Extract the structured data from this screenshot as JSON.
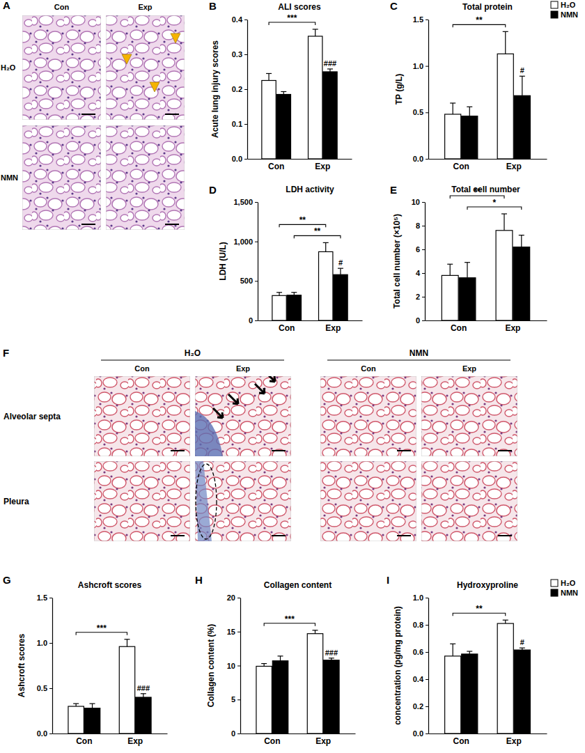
{
  "chart_data": [
    {
      "panel": "B",
      "type": "bar",
      "title": "ALI scores",
      "ylabel": "Acute lung injury scores",
      "categories": [
        "Con",
        "Exp"
      ],
      "series": [
        {
          "color": "#ffffff",
          "values": [
            0.225,
            0.352
          ],
          "errors": [
            0.02,
            0.02
          ]
        },
        {
          "color": "#000000",
          "values": [
            0.185,
            0.25
          ],
          "errors": [
            0.008,
            0.008
          ]
        }
      ],
      "ylim": [
        0,
        0.4
      ],
      "yticks": [
        {
          "value": 0,
          "label": "0.0"
        },
        0.1,
        0.2,
        0.3,
        0.4
      ],
      "annotations": [
        {
          "text": "***",
          "from": [
            0,
            0
          ],
          "to": [
            0,
            1
          ]
        },
        {
          "text": "###",
          "at": [
            1,
            1
          ]
        }
      ]
    },
    {
      "panel": "C",
      "type": "bar",
      "title": "Total protein",
      "ylabel": "TP (g/L)",
      "categories": [
        "Con",
        "Exp"
      ],
      "series": [
        {
          "name": "H₂O",
          "color": "#ffffff",
          "values": [
            0.48,
            1.13
          ],
          "errors": [
            0.12,
            0.24
          ]
        },
        {
          "name": "NMN",
          "color": "#000000",
          "values": [
            0.46,
            0.68
          ],
          "errors": [
            0.1,
            0.21
          ]
        }
      ],
      "legend": "top-right",
      "ylim": [
        0,
        1.5
      ],
      "yticks": [
        {
          "value": 0,
          "label": "0.0"
        },
        0.5,
        {
          "value": 1,
          "label": "1.0"
        },
        1.5
      ],
      "annotations": [
        {
          "text": "**",
          "from": [
            0,
            0
          ],
          "to": [
            0,
            1
          ]
        },
        {
          "text": "#",
          "at": [
            1,
            1
          ]
        }
      ]
    },
    {
      "panel": "D",
      "type": "bar",
      "title": "LDH activity",
      "ylabel": "LDH (U/L)",
      "categories": [
        "Con",
        "Exp"
      ],
      "series": [
        {
          "color": "#ffffff",
          "values": [
            315,
            870
          ],
          "errors": [
            40,
            115
          ]
        },
        {
          "color": "#000000",
          "values": [
            320,
            580
          ],
          "errors": [
            35,
            80
          ]
        }
      ],
      "ylim": [
        0,
        1500
      ],
      "yticks": [
        0,
        500,
        {
          "value": 1000,
          "label": "1,000"
        },
        {
          "value": 1500,
          "label": "1,500"
        }
      ],
      "annotations": [
        {
          "text": "**",
          "from": [
            1,
            0
          ],
          "to": [
            1,
            1
          ]
        },
        {
          "text": "**",
          "from": [
            0,
            0
          ],
          "to": [
            0,
            1
          ]
        },
        {
          "text": "#",
          "at": [
            1,
            1
          ]
        }
      ]
    },
    {
      "panel": "E",
      "type": "bar",
      "title": "Total cell number",
      "ylabel": "Total cell number (×10⁵)",
      "categories": [
        "Con",
        "Exp"
      ],
      "series": [
        {
          "color": "#ffffff",
          "values": [
            3.8,
            7.6
          ],
          "errors": [
            0.95,
            1.4
          ]
        },
        {
          "color": "#000000",
          "values": [
            3.6,
            6.2
          ],
          "errors": [
            1.3,
            1.0
          ]
        }
      ],
      "ylim": [
        0,
        10
      ],
      "yticks": [
        0,
        2,
        4,
        6,
        8,
        10
      ],
      "annotations": [
        {
          "text": "*",
          "from": [
            1,
            0
          ],
          "to": [
            1,
            1
          ]
        },
        {
          "text": "**",
          "from": [
            0,
            0
          ],
          "to": [
            0,
            1
          ]
        }
      ]
    },
    {
      "panel": "G",
      "type": "bar",
      "title": "Ashcroft scores",
      "ylabel": "Ashcroft scores",
      "categories": [
        "Con",
        "Exp"
      ],
      "series": [
        {
          "color": "#ffffff",
          "values": [
            0.3,
            0.96
          ],
          "errors": [
            0.03,
            0.08
          ]
        },
        {
          "color": "#000000",
          "values": [
            0.28,
            0.4
          ],
          "errors": [
            0.05,
            0.04
          ]
        }
      ],
      "ylim": [
        0,
        1.5
      ],
      "yticks": [
        {
          "value": 0,
          "label": "0.0"
        },
        0.5,
        {
          "value": 1,
          "label": "1.0"
        },
        1.5
      ],
      "annotations": [
        {
          "text": "***",
          "from": [
            0,
            0
          ],
          "to": [
            0,
            1
          ]
        },
        {
          "text": "###",
          "at": [
            1,
            1
          ]
        }
      ]
    },
    {
      "panel": "H",
      "type": "bar",
      "title": "Collagen content",
      "ylabel": "Collagen content (%)",
      "categories": [
        "Con",
        "Exp"
      ],
      "series": [
        {
          "color": "#ffffff",
          "values": [
            9.9,
            14.7
          ],
          "errors": [
            0.4,
            0.5
          ]
        },
        {
          "color": "#000000",
          "values": [
            10.7,
            10.8
          ],
          "errors": [
            0.7,
            0.3
          ]
        }
      ],
      "ylim": [
        0,
        20
      ],
      "yticks": [
        0,
        5,
        10,
        15,
        20
      ],
      "annotations": [
        {
          "text": "***",
          "from": [
            0,
            0
          ],
          "to": [
            0,
            1
          ]
        },
        {
          "text": "###",
          "at": [
            1,
            1
          ]
        }
      ]
    },
    {
      "panel": "I",
      "type": "bar",
      "title": "Hydroxyproline",
      "ylabel": "concentration (pg/mg protein)",
      "categories": [
        "Con",
        "Exp"
      ],
      "series": [
        {
          "name": "H₂O",
          "color": "#ffffff",
          "values": [
            0.57,
            0.81
          ],
          "errors": [
            0.09,
            0.025
          ]
        },
        {
          "name": "NMN",
          "color": "#000000",
          "values": [
            0.585,
            0.615
          ],
          "errors": [
            0.02,
            0.015
          ]
        }
      ],
      "legend": "top-right",
      "ylim": [
        0,
        1
      ],
      "yticks": [
        {
          "value": 0,
          "label": "0.0"
        },
        0.2,
        0.4,
        0.6,
        0.8,
        {
          "value": 1,
          "label": "1.0"
        }
      ],
      "annotations": [
        {
          "text": "**",
          "from": [
            0,
            0
          ],
          "to": [
            0,
            1
          ]
        },
        {
          "text": "#",
          "at": [
            1,
            1
          ]
        }
      ]
    }
  ],
  "micrographs": [
    {
      "panel": "A",
      "columns": [
        "Con",
        "Exp"
      ],
      "rows": [
        "H₂O",
        "NMN"
      ]
    },
    {
      "panel": "F",
      "groups": [
        "H₂O",
        "NMN"
      ],
      "columns": [
        "Con",
        "Exp",
        "Con",
        "Exp"
      ],
      "rows": [
        "Alveolar septa",
        "Pleura"
      ]
    }
  ]
}
